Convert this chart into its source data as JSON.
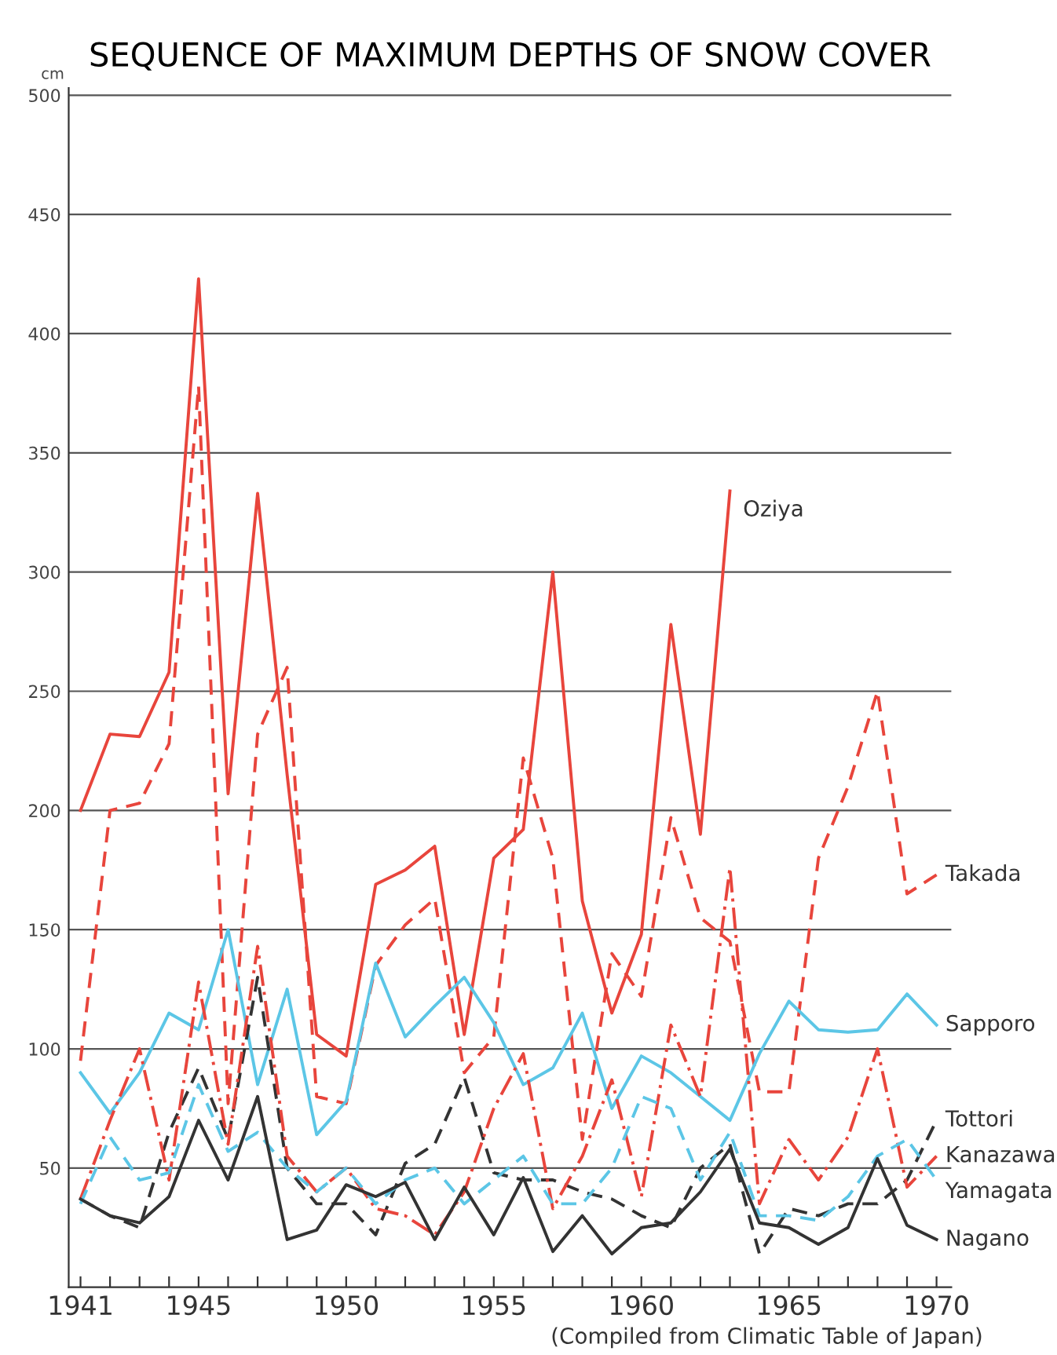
{
  "chart_data": {
    "type": "line",
    "title": "SEQUENCE OF MAXIMUM DEPTHS OF SNOW COVER",
    "ylabel": "cm",
    "x": [
      1941,
      1942,
      1943,
      1944,
      1945,
      1946,
      1947,
      1948,
      1949,
      1950,
      1951,
      1952,
      1953,
      1954,
      1955,
      1956,
      1957,
      1958,
      1959,
      1960,
      1961,
      1962,
      1963,
      1964,
      1965,
      1966,
      1967,
      1968,
      1969,
      1970
    ],
    "series": [
      {
        "name": "Oziya",
        "color": "#e8453c",
        "line_style": "solid",
        "values": [
          200,
          232,
          231,
          258,
          423,
          207,
          333,
          215,
          106,
          97,
          169,
          175,
          185,
          106,
          180,
          192,
          300,
          162,
          115,
          148,
          278,
          190,
          334,
          null,
          null,
          null,
          null,
          null,
          null,
          null
        ]
      },
      {
        "name": "Takada",
        "color": "#e8453c",
        "line_style": "dashed",
        "values": [
          95,
          200,
          203,
          228,
          378,
          77,
          232,
          260,
          80,
          77,
          135,
          152,
          163,
          90,
          105,
          222,
          180,
          62,
          140,
          122,
          197,
          155,
          145,
          82,
          82,
          180,
          210,
          250,
          165,
          173
        ]
      },
      {
        "name": "Sapporo",
        "color": "#5cc6e6",
        "line_style": "solid",
        "values": [
          90,
          73,
          90,
          115,
          108,
          150,
          85,
          125,
          64,
          78,
          136,
          105,
          118,
          130,
          111,
          85,
          92,
          115,
          75,
          97,
          90,
          80,
          70,
          98,
          120,
          108,
          107,
          108,
          123,
          110
        ]
      },
      {
        "name": "Tottori",
        "color": "#333333",
        "line_style": "dashed",
        "values": [
          37,
          30,
          25,
          65,
          92,
          62,
          130,
          50,
          35,
          35,
          22,
          52,
          60,
          88,
          48,
          45,
          45,
          40,
          37,
          30,
          25,
          50,
          60,
          14,
          33,
          30,
          35,
          35,
          45,
          70
        ]
      },
      {
        "name": "Kanazawa",
        "color": "#e8453c",
        "line_style": "dashdot",
        "values": [
          37,
          70,
          100,
          45,
          128,
          60,
          143,
          55,
          40,
          50,
          33,
          30,
          22,
          40,
          75,
          98,
          33,
          55,
          87,
          38,
          110,
          80,
          176,
          35,
          62,
          45,
          63,
          100,
          42,
          55
        ]
      },
      {
        "name": "Yamagata",
        "color": "#5cc6e6",
        "line_style": "dashed",
        "values": [
          35,
          63,
          45,
          48,
          85,
          57,
          65,
          50,
          40,
          50,
          35,
          45,
          50,
          35,
          45,
          55,
          35,
          35,
          50,
          80,
          75,
          45,
          65,
          30,
          30,
          28,
          38,
          55,
          62,
          45
        ]
      },
      {
        "name": "Nagano",
        "color": "#333333",
        "line_style": "solid",
        "values": [
          37,
          30,
          27,
          38,
          70,
          45,
          80,
          20,
          24,
          43,
          38,
          44,
          20,
          42,
          22,
          46,
          15,
          30,
          14,
          25,
          27,
          40,
          58,
          27,
          25,
          18,
          25,
          54,
          26,
          20
        ]
      }
    ],
    "xlim": [
      1940.6,
      1970.5
    ],
    "ylim": [
      0,
      503
    ],
    "xticks": [
      1941,
      {
        "value": 1942,
        "label": null
      },
      {
        "value": 1943,
        "label": null
      },
      {
        "value": 1944,
        "label": null
      },
      1945,
      {
        "value": 1946,
        "label": null
      },
      {
        "value": 1947,
        "label": null
      },
      {
        "value": 1948,
        "label": null
      },
      {
        "value": 1949,
        "label": null
      },
      1950,
      {
        "value": 1951,
        "label": null
      },
      {
        "value": 1952,
        "label": null
      },
      {
        "value": 1953,
        "label": null
      },
      {
        "value": 1954,
        "label": null
      },
      1955,
      {
        "value": 1956,
        "label": null
      },
      {
        "value": 1957,
        "label": null
      },
      {
        "value": 1958,
        "label": null
      },
      {
        "value": 1959,
        "label": null
      },
      1960,
      {
        "value": 1961,
        "label": null
      },
      {
        "value": 1962,
        "label": null
      },
      {
        "value": 1963,
        "label": null
      },
      {
        "value": 1964,
        "label": null
      },
      1965,
      {
        "value": 1966,
        "label": null
      },
      {
        "value": 1967,
        "label": null
      },
      {
        "value": 1968,
        "label": null
      },
      {
        "value": 1969,
        "label": null
      },
      1970
    ],
    "yticks": [
      50,
      100,
      150,
      200,
      250,
      300,
      350,
      400,
      450,
      500
    ],
    "grid": "y",
    "legend": false,
    "marker": "none",
    "annotations": [
      "(Compiled from Climatic Table of Japan)"
    ]
  }
}
